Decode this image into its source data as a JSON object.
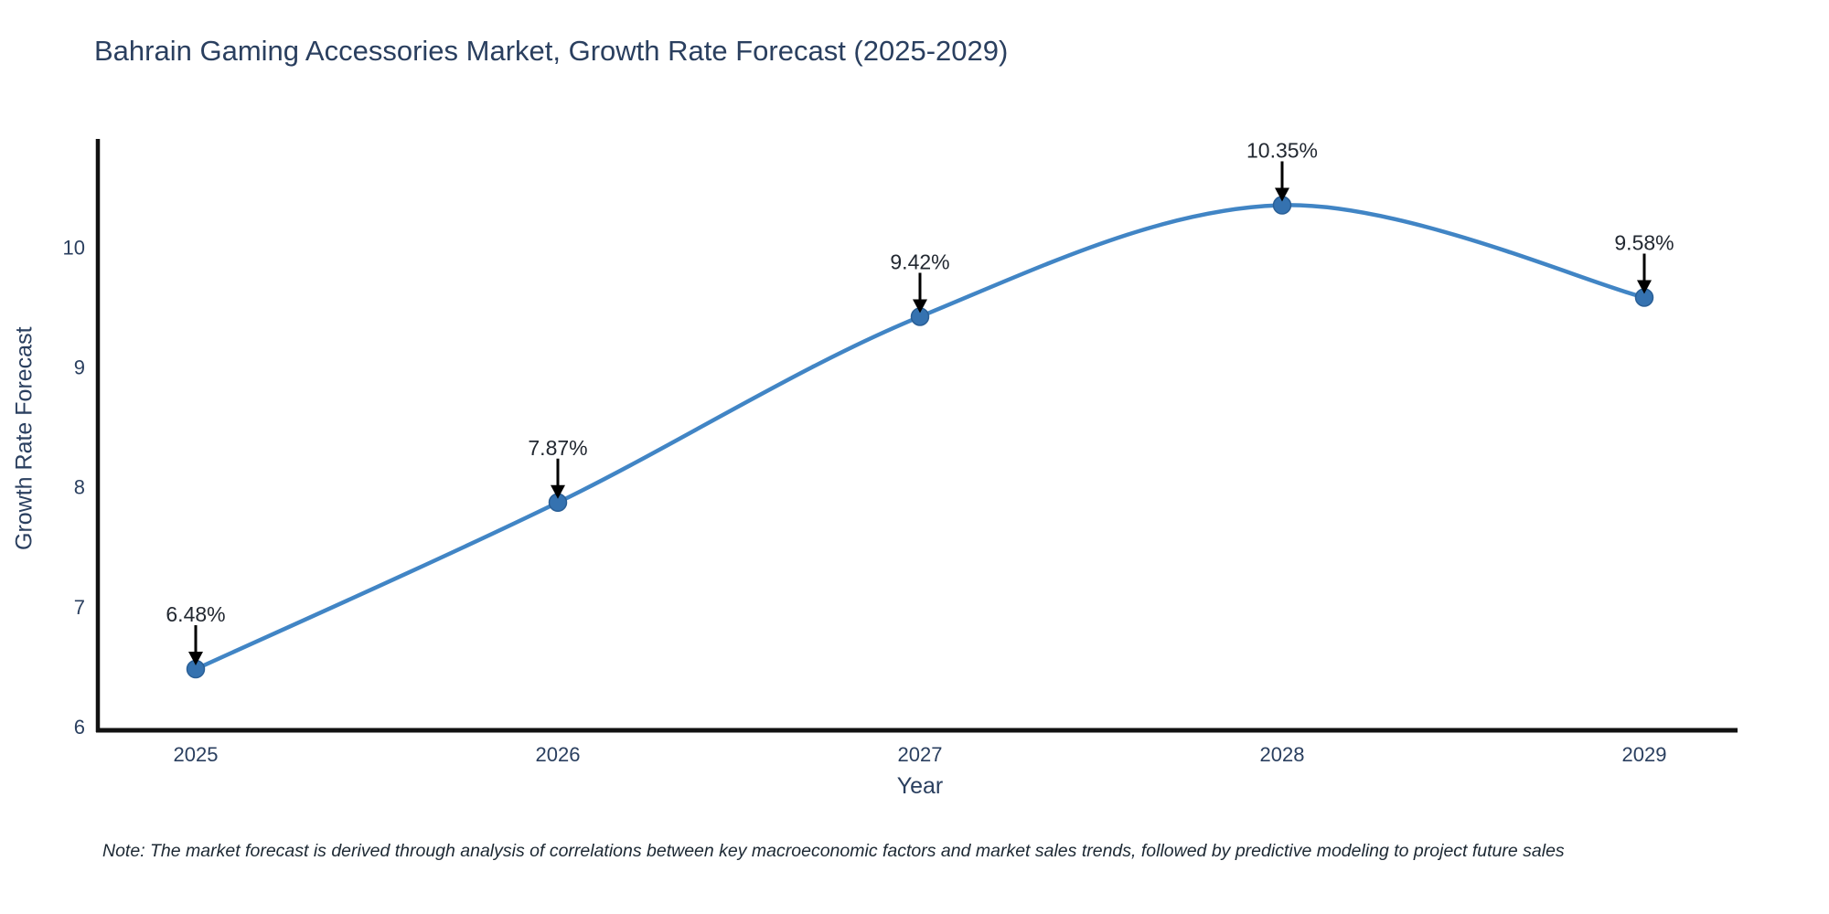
{
  "title": "Bahrain Gaming Accessories Market, Growth Rate Forecast (2025-2029)",
  "note": "Note: The market forecast is derived through analysis of correlations between key macroeconomic factors and market sales trends, followed by predictive modeling to project future sales",
  "chart_data": {
    "type": "line",
    "title": "Bahrain Gaming Accessories Market, Growth Rate Forecast (2025-2029)",
    "xlabel": "Year",
    "ylabel": "Growth Rate Forecast",
    "x": [
      2025,
      2026,
      2027,
      2028,
      2029
    ],
    "values": [
      6.48,
      7.87,
      9.42,
      10.35,
      9.58
    ],
    "point_labels": [
      "6.48%",
      "7.87%",
      "9.42%",
      "10.35%",
      "9.58%"
    ],
    "x_tick_labels": [
      "2025",
      "2026",
      "2027",
      "2028",
      "2029"
    ],
    "y_ticks": [
      6,
      7,
      8,
      9,
      10
    ],
    "ylim": [
      6,
      10.88
    ],
    "grid": false,
    "legend": false,
    "line_style": "spline",
    "annotations": "value labels with downward arrows above each point",
    "colors": {
      "line": "#4185c5",
      "marker_fill": "#3572b0",
      "marker_stroke": "#2a5f96",
      "axis": "#111111",
      "arrow": "#000000",
      "annotation_text": "#222831",
      "title_text": "#2a3f5f",
      "tick_text": "#2a3f5f",
      "note_text": "#1c2833",
      "background": "#ffffff"
    }
  }
}
